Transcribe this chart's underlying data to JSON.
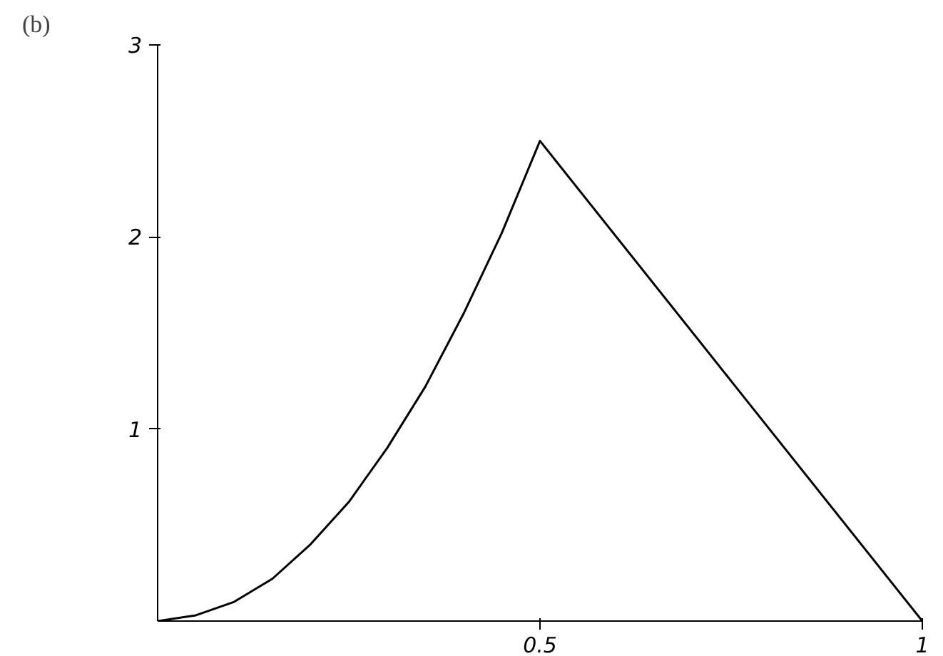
{
  "chart_data": {
    "type": "line",
    "title": "(b)",
    "x": [
      0,
      0.05,
      0.1,
      0.15,
      0.2,
      0.25,
      0.3,
      0.35,
      0.4,
      0.45,
      0.5,
      0.75,
      1
    ],
    "series": [
      {
        "color": "#000000",
        "values": [
          0,
          0.03,
          0.1,
          0.22,
          0.4,
          0.62,
          0.9,
          1.22,
          1.6,
          2.02,
          2.5,
          1.25,
          0
        ]
      }
    ],
    "xlim": [
      0,
      1
    ],
    "ylim": [
      0,
      3
    ],
    "xticks": [
      0.5,
      1
    ],
    "yticks": [
      1,
      2,
      3
    ],
    "grid": false,
    "marker": "none",
    "line_style": "solid"
  }
}
